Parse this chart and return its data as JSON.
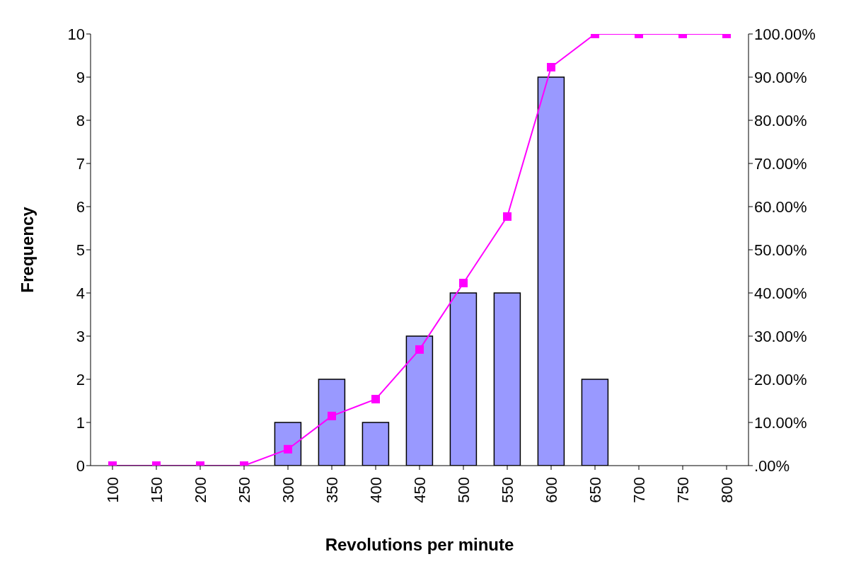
{
  "chart_data": {
    "type": "bar",
    "xlabel": "Revolutions per minute",
    "ylabel": "Frequency",
    "categories": [
      "100",
      "150",
      "200",
      "250",
      "300",
      "350",
      "400",
      "450",
      "500",
      "550",
      "600",
      "650",
      "700",
      "750",
      "800"
    ],
    "series": [
      {
        "type": "bar",
        "color": "#9999ff",
        "values": [
          0,
          0,
          0,
          0,
          1,
          2,
          1,
          3,
          4,
          4,
          9,
          2,
          0,
          0,
          0
        ]
      },
      {
        "type": "line",
        "axis": "y2",
        "color": "#ff00ff",
        "marker": "square",
        "values": [
          0,
          0,
          0,
          0,
          3.8,
          11.5,
          15.4,
          26.9,
          42.3,
          57.7,
          92.3,
          100,
          100,
          100,
          100
        ]
      }
    ],
    "ylim": [
      0,
      10
    ],
    "yticks": [
      0,
      1,
      2,
      3,
      4,
      5,
      6,
      7,
      8,
      9,
      10
    ],
    "y2lim": [
      0,
      100
    ],
    "y2ticks": [
      {
        "value": 0,
        "label": ".00%"
      },
      {
        "value": 10,
        "label": "10.00%"
      },
      {
        "value": 20,
        "label": "20.00%"
      },
      {
        "value": 30,
        "label": "30.00%"
      },
      {
        "value": 40,
        "label": "40.00%"
      },
      {
        "value": 50,
        "label": "50.00%"
      },
      {
        "value": 60,
        "label": "60.00%"
      },
      {
        "value": 70,
        "label": "70.00%"
      },
      {
        "value": 80,
        "label": "80.00%"
      },
      {
        "value": 90,
        "label": "90.00%"
      },
      {
        "value": 100,
        "label": "100.00%"
      }
    ],
    "grid": false,
    "legend": false
  }
}
